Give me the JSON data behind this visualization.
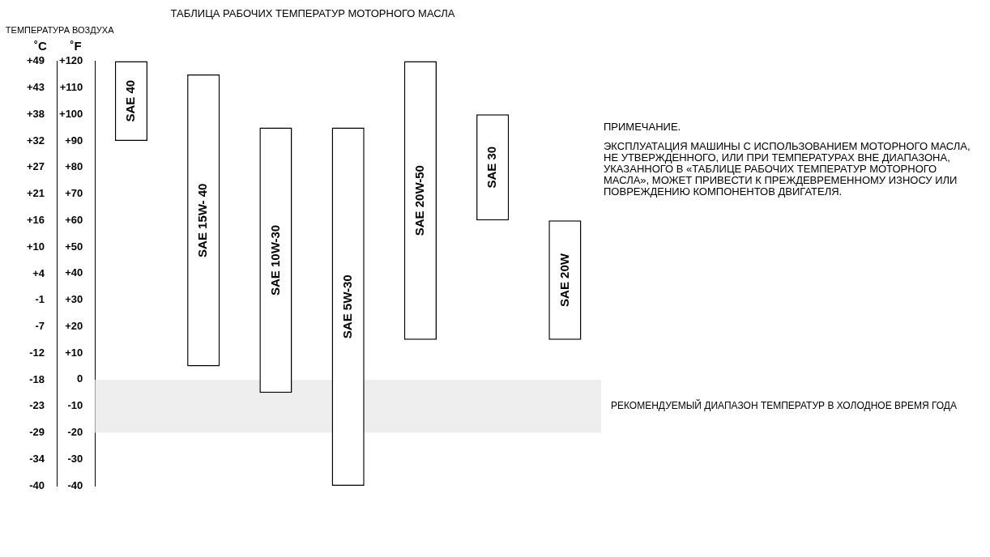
{
  "chart_data": {
    "type": "bar",
    "title": "ТАБЛИЦА РАБОЧИХ ТЕМПЕРАТУР МОТОРНОГО МАСЛА",
    "ylabel": "˚F",
    "y2label": "˚C",
    "categories": [
      "SAE 40",
      "SAE 15W- 40",
      "SAE 10W-30",
      "SAE 5W-30",
      "SAE 20W-50",
      "SAE 30",
      "SAE 20W"
    ],
    "base": [
      90,
      5,
      -5,
      -40,
      15,
      60,
      15
    ],
    "values": [
      30,
      110,
      100,
      135,
      105,
      40,
      45
    ],
    "color": "#ffffff",
    "ylim": [
      -40,
      120
    ],
    "yticks": [
      {
        "value": 120,
        "label": "+120"
      },
      {
        "value": 110,
        "label": "+110"
      },
      {
        "value": 100,
        "label": "+100"
      },
      {
        "value": 90,
        "label": "+90"
      },
      {
        "value": 80,
        "label": "+80"
      },
      {
        "value": 70,
        "label": "+70"
      },
      {
        "value": 60,
        "label": "+60"
      },
      {
        "value": 50,
        "label": "+50"
      },
      {
        "value": 40,
        "label": "+40"
      },
      {
        "value": 30,
        "label": "+30"
      },
      {
        "value": 20,
        "label": "+20"
      },
      {
        "value": 10,
        "label": "+10"
      },
      0,
      -10,
      -20,
      -30,
      -40
    ],
    "y2lim": [
      -40,
      48.9
    ],
    "y2ticks": [
      {
        "value": 48.9,
        "label": "+49"
      },
      {
        "value": 43.3,
        "label": "+43"
      },
      {
        "value": 37.8,
        "label": "+38"
      },
      {
        "value": 32.2,
        "label": "+32"
      },
      {
        "value": 26.7,
        "label": "+27"
      },
      {
        "value": 21.1,
        "label": "+21"
      },
      {
        "value": 15.6,
        "label": "+16"
      },
      {
        "value": 10,
        "label": "+10"
      },
      {
        "value": 4.4,
        "label": "+4"
      },
      {
        "value": -1.1,
        "label": "-1"
      },
      {
        "value": -6.7,
        "label": "-7"
      },
      {
        "value": -12.2,
        "label": "-12"
      },
      {
        "value": -17.8,
        "label": "-18"
      },
      {
        "value": -23.3,
        "label": "-23"
      },
      {
        "value": -28.9,
        "label": "-29"
      },
      {
        "value": -34.4,
        "label": "-34"
      },
      {
        "value": -40,
        "label": "-40"
      }
    ],
    "bands": [
      {
        "axis": "y",
        "from": -20,
        "to": 0,
        "label": "РЕКОМЕНДУЕМЫЙ ДИАПАЗОН ТЕМПЕРАТУР В ХОЛОДНОЕ ВРЕМЯ ГОДА",
        "color": "#eeeeee"
      }
    ],
    "annotations": [
      "ТЕМПЕРАТУРА ВОЗДУХА",
      "ПРИМЕЧАНИЕ.",
      "ЭКСПЛУАТАЦИЯ МАШИНЫ С ИСПОЛЬЗОВАНИЕМ МОТОРНОГО МАСЛА, НЕ УТВЕРЖДЕННОГО, ИЛИ ПРИ ТЕМПЕРАТУРАХ ВНЕ ДИАПАЗОНА, УКАЗАННОГО В «ТАБЛИЦЕ РАБОЧИХ ТЕМПЕРАТУР МОТОРНОГО МАСЛА», МОЖЕТ ПРИВЕСТИ К ПРЕЖДЕВРЕМЕННОМУ ИЗНОСУ ИЛИ ПОВРЕЖДЕНИЮ КОМПОНЕНТОВ ДВИГАТЕЛЯ."
    ],
    "tick_labels": "y",
    "grid": false,
    "legend": false
  }
}
